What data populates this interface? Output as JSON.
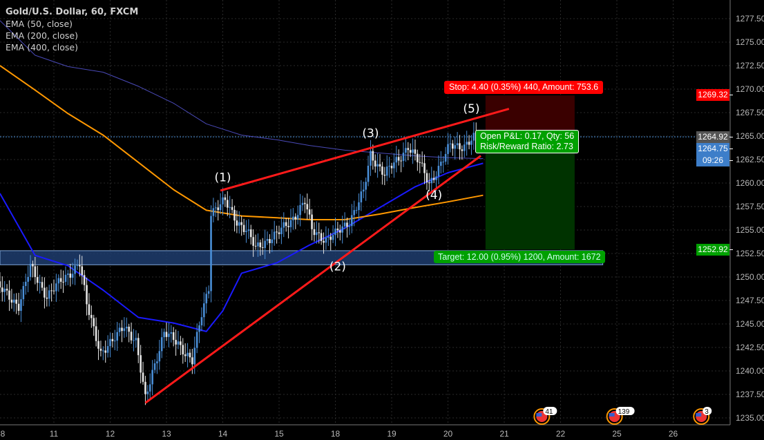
{
  "legend": {
    "title": "Gold/U.S. Dollar, 60, FXCM",
    "indicators": [
      "EMA (50, close)",
      "EMA (200, close)",
      "EMA (400, close)"
    ]
  },
  "price_tags": {
    "stop": "1269.32",
    "last": "1264.92",
    "ema": "1264.75",
    "countdown": "09:26",
    "target": "1252.92"
  },
  "position": {
    "stop_label": "Stop: 4.40 (0.35%) 440, Amount: 753.6",
    "pnl_label": "Open P&L: 0.17, Qty: 56",
    "rr_label": "Risk/Reward Ratio: 2.73",
    "target_label": "Target: 12.00 (0.95%) 1200, Amount: 1672",
    "entry": 1264.92,
    "stop": 1269.32,
    "target": 1252.92,
    "start": [
      "20",
      16
    ],
    "end": [
      "22",
      6
    ]
  },
  "events": [
    {
      "count": "41",
      "at": [
        "21",
        16
      ]
    },
    {
      "count": "139",
      "at": [
        "22",
        23
      ]
    },
    {
      "count": "3",
      "at": [
        "26",
        12
      ]
    }
  ],
  "colors": {
    "up": "#4a8fd8",
    "down": "#e6e6e6",
    "ema50": "#1a1aff",
    "ema200": "#ff9800",
    "ema400": "#4a4ab8",
    "trend": "#ff1a1a",
    "stop": "#ff0000",
    "target": "#00a000",
    "zone": "#1e3d6e",
    "grid": "#2a2a2a"
  },
  "chart_data": {
    "type": "candlestick",
    "interval": "60",
    "x_tick_labels": [
      "8",
      "11",
      "12",
      "13",
      "14",
      "15",
      "18",
      "19",
      "20",
      "21",
      "22",
      "25",
      "26"
    ],
    "y_tick_labels": [
      "1235.00",
      "1237.50",
      "1240.00",
      "1242.50",
      "1245.00",
      "1247.50",
      "1250.00",
      "1252.50",
      "1255.00",
      "1257.50",
      "1260.00",
      "1262.50",
      "1265.00",
      "1267.50",
      "1270.00",
      "1272.50",
      "1275.00",
      "1277.50"
    ],
    "ylim": [
      1233.5,
      1279
    ],
    "price_path": [
      [
        "8",
        1,
        1249
      ],
      [
        "8",
        10,
        1247
      ],
      [
        "8",
        15,
        1251
      ],
      [
        "8",
        22,
        1248
      ],
      [
        "11",
        6,
        1250
      ],
      [
        "11",
        12,
        1251.5
      ],
      [
        "11",
        15,
        1247
      ],
      [
        "11",
        21,
        1242
      ],
      [
        "12",
        2,
        1243
      ],
      [
        "12",
        7,
        1245
      ],
      [
        "12",
        12,
        1243
      ],
      [
        "12",
        16,
        1237
      ],
      [
        "12",
        19,
        1240
      ],
      [
        "13",
        0,
        1244
      ],
      [
        "13",
        6,
        1243
      ],
      [
        "13",
        12,
        1241
      ],
      [
        "13",
        16,
        1246
      ],
      [
        "13",
        19,
        1249
      ],
      [
        "13",
        20,
        1257
      ],
      [
        "14",
        2,
        1258
      ],
      [
        "14",
        7,
        1256
      ],
      [
        "14",
        11,
        1255
      ],
      [
        "14",
        15,
        1253
      ],
      [
        "14",
        20,
        1254
      ],
      [
        "15",
        0,
        1254.5
      ],
      [
        "15",
        6,
        1256
      ],
      [
        "15",
        12,
        1258
      ],
      [
        "15",
        15,
        1255
      ],
      [
        "15",
        21,
        1254
      ],
      [
        "18",
        1,
        1254.5
      ],
      [
        "18",
        7,
        1256
      ],
      [
        "18",
        13,
        1259
      ],
      [
        "18",
        16,
        1263
      ],
      [
        "18",
        22,
        1261
      ],
      [
        "19",
        4,
        1262.5
      ],
      [
        "19",
        8,
        1264
      ],
      [
        "19",
        13,
        1262
      ],
      [
        "19",
        17,
        1260
      ],
      [
        "19",
        22,
        1262
      ],
      [
        "20",
        2,
        1264
      ],
      [
        "20",
        8,
        1264
      ],
      [
        "20",
        13,
        1264.9
      ]
    ],
    "series": [
      {
        "name": "EMA (50, close)",
        "points": [
          [
            "8",
            1,
            1258.9
          ],
          [
            "8",
            16,
            1252.3
          ],
          [
            "11",
            6,
            1251.2
          ],
          [
            "11",
            21,
            1248.6
          ],
          [
            "12",
            12,
            1245.7
          ],
          [
            "13",
            3,
            1245.1
          ],
          [
            "13",
            17,
            1244.2
          ],
          [
            "14",
            0,
            1246.4
          ],
          [
            "14",
            8,
            1250.4
          ],
          [
            "14",
            23,
            1251.5
          ],
          [
            "15",
            13,
            1253.4
          ],
          [
            "18",
            4,
            1255.2
          ],
          [
            "18",
            19,
            1257.4
          ],
          [
            "19",
            10,
            1259.6
          ],
          [
            "20",
            0,
            1261.1
          ],
          [
            "20",
            15,
            1262.1
          ]
        ]
      },
      {
        "name": "EMA (200, close)",
        "points": [
          [
            "8",
            1,
            1272.5
          ],
          [
            "8",
            16,
            1269.9
          ],
          [
            "11",
            6,
            1267.4
          ],
          [
            "11",
            21,
            1265.1
          ],
          [
            "12",
            12,
            1262.2
          ],
          [
            "13",
            3,
            1259.3
          ],
          [
            "13",
            17,
            1257.1
          ],
          [
            "14",
            8,
            1256.5
          ],
          [
            "14",
            23,
            1256.3
          ],
          [
            "15",
            13,
            1256.1
          ],
          [
            "18",
            4,
            1256.1
          ],
          [
            "18",
            19,
            1256.7
          ],
          [
            "19",
            10,
            1257.4
          ],
          [
            "20",
            0,
            1258.0
          ],
          [
            "20",
            15,
            1258.7
          ]
        ]
      },
      {
        "name": "EMA (400, close)",
        "points": [
          [
            "8",
            1,
            1277.3
          ],
          [
            "8",
            16,
            1273.6
          ],
          [
            "11",
            6,
            1272.4
          ],
          [
            "11",
            21,
            1271.8
          ],
          [
            "12",
            12,
            1270.3
          ],
          [
            "13",
            3,
            1268.5
          ],
          [
            "13",
            17,
            1266.3
          ],
          [
            "14",
            8,
            1265.1
          ],
          [
            "14",
            23,
            1264.6
          ],
          [
            "15",
            13,
            1264.0
          ],
          [
            "18",
            4,
            1263.5
          ],
          [
            "18",
            19,
            1263.2
          ],
          [
            "19",
            10,
            1262.9
          ],
          [
            "20",
            0,
            1262.7
          ],
          [
            "20",
            15,
            1262.6
          ]
        ]
      }
    ],
    "trendlines": [
      {
        "from": [
          "12",
          15,
          1236.6
        ],
        "to": [
          "20",
          14,
          1262.9
        ]
      },
      {
        "from": [
          "13",
          23,
          1259.2
        ],
        "to": [
          "21",
          2,
          1267.9
        ]
      }
    ],
    "zone": {
      "top": 1252.8,
      "bottom": 1251.3,
      "end": [
        "22",
        18
      ]
    },
    "wave_labels": [
      {
        "text": "(1)",
        "at": [
          "14",
          0,
          1260.2
        ]
      },
      {
        "text": "(2)",
        "at": [
          "18",
          1,
          1250.7
        ]
      },
      {
        "text": "(3)",
        "at": [
          "18",
          15,
          1264.9
        ]
      },
      {
        "text": "(4)",
        "at": [
          "19",
          18,
          1258.3
        ]
      },
      {
        "text": "(5)",
        "at": [
          "20",
          10,
          1267.5
        ]
      }
    ]
  }
}
